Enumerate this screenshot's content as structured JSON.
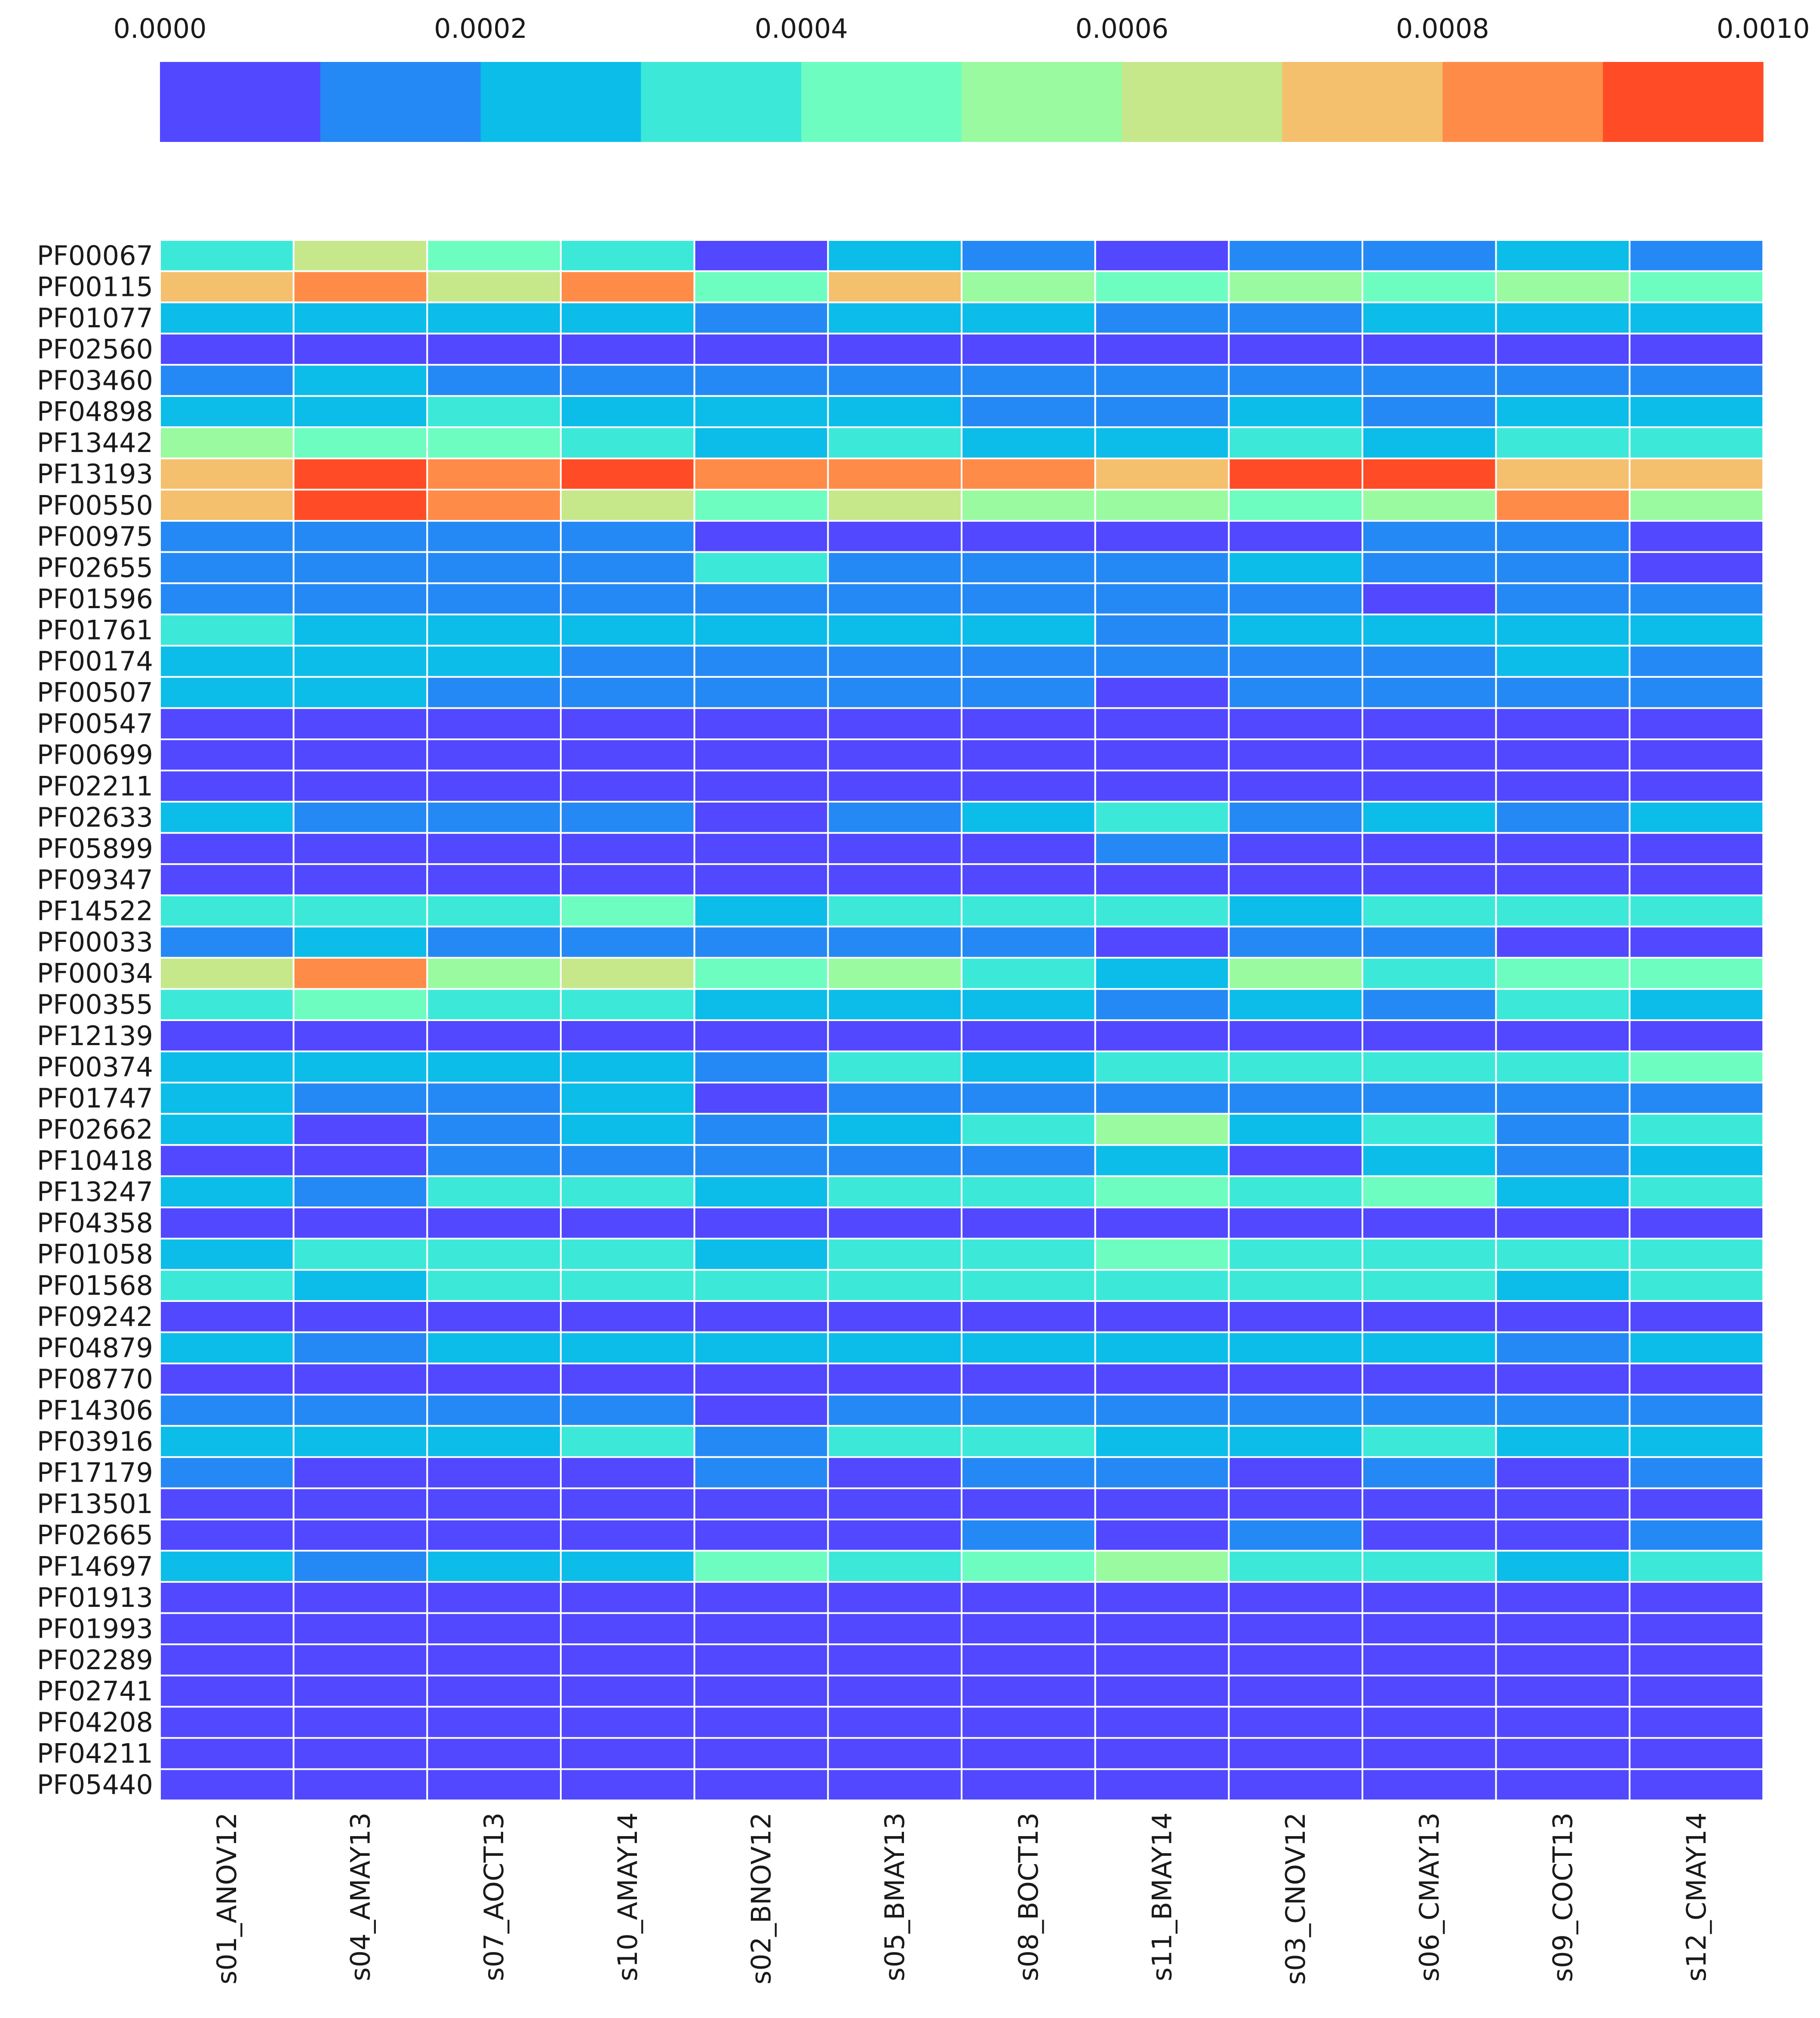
{
  "chart_data": {
    "type": "heatmap",
    "title": "",
    "xlabel": "",
    "ylabel": "",
    "colormap": "rainbow",
    "grid": true,
    "value_range": [
      0.0,
      0.001
    ],
    "colorbar": {
      "placement": "top",
      "tick_labels": [
        "0.0000",
        "0.0002",
        "0.0004",
        "0.0006",
        "0.0008",
        "0.0010"
      ],
      "tick_values": [
        0.0,
        0.0002,
        0.0004,
        0.0006,
        0.0008,
        0.001
      ],
      "bin_colors": [
        "#5148ff",
        "#2589f5",
        "#0cbde9",
        "#3ce9d8",
        "#6dfdc1",
        "#9afaa0",
        "#c6e88a",
        "#f4c06d",
        "#ff8b48",
        "#ff4c26"
      ]
    },
    "columns": [
      "s01_ANOV12",
      "s04_AMAY13",
      "s07_AOCT13",
      "s10_AMAY14",
      "s02_BNOV12",
      "s05_BMAY13",
      "s08_BOCT13",
      "s11_BMAY14",
      "s03_CNOV12",
      "s06_CMAY13",
      "s09_COCT13",
      "s12_CMAY14"
    ],
    "rows": [
      "PF00067",
      "PF00115",
      "PF01077",
      "PF02560",
      "PF03460",
      "PF04898",
      "PF13442",
      "PF13193",
      "PF00550",
      "PF00975",
      "PF02655",
      "PF01596",
      "PF01761",
      "PF00174",
      "PF00507",
      "PF00547",
      "PF00699",
      "PF02211",
      "PF02633",
      "PF05899",
      "PF09347",
      "PF14522",
      "PF00033",
      "PF00034",
      "PF00355",
      "PF12139",
      "PF00374",
      "PF01747",
      "PF02662",
      "PF10418",
      "PF13247",
      "PF04358",
      "PF01058",
      "PF01568",
      "PF09242",
      "PF04879",
      "PF08770",
      "PF14306",
      "PF03916",
      "PF17179",
      "PF13501",
      "PF02665",
      "PF14697",
      "PF01913",
      "PF01993",
      "PF02289",
      "PF02741",
      "PF04208",
      "PF04211",
      "PF05440"
    ],
    "values": [
      [
        0.00035,
        0.00065,
        0.00045,
        0.00035,
        5e-05,
        0.00025,
        0.00015,
        5e-05,
        0.00015,
        0.00015,
        0.00025,
        0.00015
      ],
      [
        0.00075,
        0.00085,
        0.00065,
        0.00085,
        0.00045,
        0.00075,
        0.00055,
        0.00045,
        0.00055,
        0.00045,
        0.00055,
        0.00045
      ],
      [
        0.00025,
        0.00025,
        0.00025,
        0.00025,
        0.00015,
        0.00025,
        0.00025,
        0.00015,
        0.00015,
        0.00025,
        0.00025,
        0.00025
      ],
      [
        5e-05,
        5e-05,
        5e-05,
        5e-05,
        5e-05,
        5e-05,
        5e-05,
        5e-05,
        5e-05,
        5e-05,
        5e-05,
        5e-05
      ],
      [
        0.00015,
        0.00025,
        0.00015,
        0.00015,
        0.00015,
        0.00015,
        0.00015,
        0.00015,
        0.00015,
        0.00015,
        0.00015,
        0.00015
      ],
      [
        0.00025,
        0.00025,
        0.00035,
        0.00025,
        0.00025,
        0.00025,
        0.00015,
        0.00015,
        0.00025,
        0.00015,
        0.00025,
        0.00025
      ],
      [
        0.00055,
        0.00045,
        0.00045,
        0.00035,
        0.00025,
        0.00035,
        0.00025,
        0.00025,
        0.00035,
        0.00025,
        0.00035,
        0.00035
      ],
      [
        0.00075,
        0.00095,
        0.00085,
        0.00095,
        0.00085,
        0.00085,
        0.00085,
        0.00075,
        0.00095,
        0.00095,
        0.00075,
        0.00075
      ],
      [
        0.00075,
        0.00095,
        0.00085,
        0.00065,
        0.00045,
        0.00065,
        0.00055,
        0.00055,
        0.00045,
        0.00055,
        0.00085,
        0.00055
      ],
      [
        0.00015,
        0.00015,
        0.00015,
        0.00015,
        5e-05,
        5e-05,
        5e-05,
        5e-05,
        5e-05,
        0.00015,
        0.00015,
        5e-05
      ],
      [
        0.00015,
        0.00015,
        0.00015,
        0.00015,
        0.00035,
        0.00015,
        0.00015,
        0.00015,
        0.00025,
        0.00015,
        0.00015,
        5e-05
      ],
      [
        0.00015,
        0.00015,
        0.00015,
        0.00015,
        0.00015,
        0.00015,
        0.00015,
        0.00015,
        0.00015,
        5e-05,
        0.00015,
        0.00015
      ],
      [
        0.00035,
        0.00025,
        0.00025,
        0.00025,
        0.00025,
        0.00025,
        0.00025,
        0.00015,
        0.00025,
        0.00025,
        0.00025,
        0.00025
      ],
      [
        0.00025,
        0.00025,
        0.00025,
        0.00015,
        0.00015,
        0.00015,
        0.00015,
        0.00015,
        0.00015,
        0.00015,
        0.00025,
        0.00015
      ],
      [
        0.00025,
        0.00025,
        0.00015,
        0.00015,
        0.00015,
        0.00015,
        0.00015,
        5e-05,
        0.00015,
        0.00015,
        0.00015,
        0.00015
      ],
      [
        5e-05,
        5e-05,
        5e-05,
        5e-05,
        5e-05,
        5e-05,
        5e-05,
        5e-05,
        5e-05,
        5e-05,
        5e-05,
        5e-05
      ],
      [
        5e-05,
        5e-05,
        5e-05,
        5e-05,
        5e-05,
        5e-05,
        5e-05,
        5e-05,
        5e-05,
        5e-05,
        5e-05,
        5e-05
      ],
      [
        5e-05,
        5e-05,
        5e-05,
        5e-05,
        5e-05,
        5e-05,
        5e-05,
        5e-05,
        5e-05,
        5e-05,
        5e-05,
        5e-05
      ],
      [
        0.00025,
        0.00015,
        0.00015,
        0.00015,
        5e-05,
        0.00015,
        0.00025,
        0.00035,
        0.00015,
        0.00025,
        0.00015,
        0.00025
      ],
      [
        5e-05,
        5e-05,
        5e-05,
        5e-05,
        5e-05,
        5e-05,
        5e-05,
        0.00015,
        5e-05,
        5e-05,
        5e-05,
        5e-05
      ],
      [
        5e-05,
        5e-05,
        5e-05,
        5e-05,
        5e-05,
        5e-05,
        5e-05,
        5e-05,
        5e-05,
        5e-05,
        5e-05,
        5e-05
      ],
      [
        0.00035,
        0.00035,
        0.00035,
        0.00045,
        0.00025,
        0.00035,
        0.00035,
        0.00035,
        0.00025,
        0.00035,
        0.00035,
        0.00035
      ],
      [
        0.00015,
        0.00025,
        0.00015,
        0.00015,
        0.00015,
        0.00015,
        0.00015,
        5e-05,
        0.00015,
        0.00015,
        5e-05,
        5e-05
      ],
      [
        0.00065,
        0.00085,
        0.00055,
        0.00065,
        0.00045,
        0.00055,
        0.00035,
        0.00025,
        0.00055,
        0.00035,
        0.00045,
        0.00045
      ],
      [
        0.00035,
        0.00045,
        0.00035,
        0.00035,
        0.00025,
        0.00025,
        0.00025,
        0.00015,
        0.00025,
        0.00015,
        0.00035,
        0.00025
      ],
      [
        5e-05,
        5e-05,
        5e-05,
        5e-05,
        5e-05,
        5e-05,
        5e-05,
        5e-05,
        5e-05,
        5e-05,
        5e-05,
        5e-05
      ],
      [
        0.00025,
        0.00025,
        0.00025,
        0.00025,
        0.00015,
        0.00035,
        0.00025,
        0.00035,
        0.00035,
        0.00035,
        0.00035,
        0.00045
      ],
      [
        0.00025,
        0.00015,
        0.00015,
        0.00025,
        5e-05,
        0.00015,
        0.00015,
        0.00015,
        0.00015,
        0.00015,
        0.00015,
        0.00015
      ],
      [
        0.00025,
        5e-05,
        0.00015,
        0.00025,
        0.00015,
        0.00025,
        0.00035,
        0.00055,
        0.00025,
        0.00035,
        0.00015,
        0.00035
      ],
      [
        5e-05,
        5e-05,
        0.00015,
        0.00015,
        0.00015,
        0.00015,
        0.00015,
        0.00025,
        5e-05,
        0.00025,
        0.00015,
        0.00025
      ],
      [
        0.00025,
        0.00015,
        0.00035,
        0.00035,
        0.00025,
        0.00035,
        0.00035,
        0.00045,
        0.00035,
        0.00045,
        0.00025,
        0.00035
      ],
      [
        5e-05,
        5e-05,
        5e-05,
        5e-05,
        5e-05,
        5e-05,
        5e-05,
        5e-05,
        5e-05,
        5e-05,
        5e-05,
        5e-05
      ],
      [
        0.00025,
        0.00035,
        0.00035,
        0.00035,
        0.00025,
        0.00035,
        0.00035,
        0.00045,
        0.00035,
        0.00035,
        0.00035,
        0.00035
      ],
      [
        0.00035,
        0.00025,
        0.00035,
        0.00035,
        0.00035,
        0.00035,
        0.00035,
        0.00035,
        0.00035,
        0.00035,
        0.00025,
        0.00035
      ],
      [
        5e-05,
        5e-05,
        5e-05,
        5e-05,
        5e-05,
        5e-05,
        5e-05,
        5e-05,
        5e-05,
        5e-05,
        5e-05,
        5e-05
      ],
      [
        0.00025,
        0.00015,
        0.00025,
        0.00025,
        0.00025,
        0.00025,
        0.00025,
        0.00025,
        0.00025,
        0.00025,
        0.00015,
        0.00025
      ],
      [
        5e-05,
        5e-05,
        5e-05,
        5e-05,
        5e-05,
        5e-05,
        5e-05,
        5e-05,
        5e-05,
        5e-05,
        5e-05,
        5e-05
      ],
      [
        0.00015,
        0.00015,
        0.00015,
        0.00015,
        5e-05,
        0.00015,
        0.00015,
        0.00015,
        0.00015,
        0.00015,
        0.00015,
        0.00015
      ],
      [
        0.00025,
        0.00025,
        0.00025,
        0.00035,
        0.00015,
        0.00035,
        0.00035,
        0.00025,
        0.00025,
        0.00035,
        0.00025,
        0.00025
      ],
      [
        0.00015,
        5e-05,
        5e-05,
        5e-05,
        0.00015,
        5e-05,
        0.00015,
        0.00015,
        5e-05,
        0.00015,
        5e-05,
        0.00015
      ],
      [
        5e-05,
        5e-05,
        5e-05,
        5e-05,
        5e-05,
        5e-05,
        5e-05,
        5e-05,
        5e-05,
        5e-05,
        5e-05,
        5e-05
      ],
      [
        5e-05,
        5e-05,
        5e-05,
        5e-05,
        5e-05,
        5e-05,
        0.00015,
        5e-05,
        0.00015,
        5e-05,
        5e-05,
        0.00015
      ],
      [
        0.00025,
        0.00015,
        0.00025,
        0.00025,
        0.00045,
        0.00035,
        0.00045,
        0.00055,
        0.00035,
        0.00035,
        0.00025,
        0.00035
      ],
      [
        5e-05,
        5e-05,
        5e-05,
        5e-05,
        5e-05,
        5e-05,
        5e-05,
        5e-05,
        5e-05,
        5e-05,
        5e-05,
        5e-05
      ],
      [
        5e-05,
        5e-05,
        5e-05,
        5e-05,
        5e-05,
        5e-05,
        5e-05,
        5e-05,
        5e-05,
        5e-05,
        5e-05,
        5e-05
      ],
      [
        5e-05,
        5e-05,
        5e-05,
        5e-05,
        5e-05,
        5e-05,
        5e-05,
        5e-05,
        5e-05,
        5e-05,
        5e-05,
        5e-05
      ],
      [
        5e-05,
        5e-05,
        5e-05,
        5e-05,
        5e-05,
        5e-05,
        5e-05,
        5e-05,
        5e-05,
        5e-05,
        5e-05,
        5e-05
      ],
      [
        5e-05,
        5e-05,
        5e-05,
        5e-05,
        5e-05,
        5e-05,
        5e-05,
        5e-05,
        5e-05,
        5e-05,
        5e-05,
        5e-05
      ],
      [
        5e-05,
        5e-05,
        5e-05,
        5e-05,
        5e-05,
        5e-05,
        5e-05,
        5e-05,
        5e-05,
        5e-05,
        5e-05,
        5e-05
      ],
      [
        5e-05,
        5e-05,
        5e-05,
        5e-05,
        5e-05,
        5e-05,
        5e-05,
        5e-05,
        5e-05,
        5e-05,
        5e-05,
        5e-05
      ]
    ]
  }
}
